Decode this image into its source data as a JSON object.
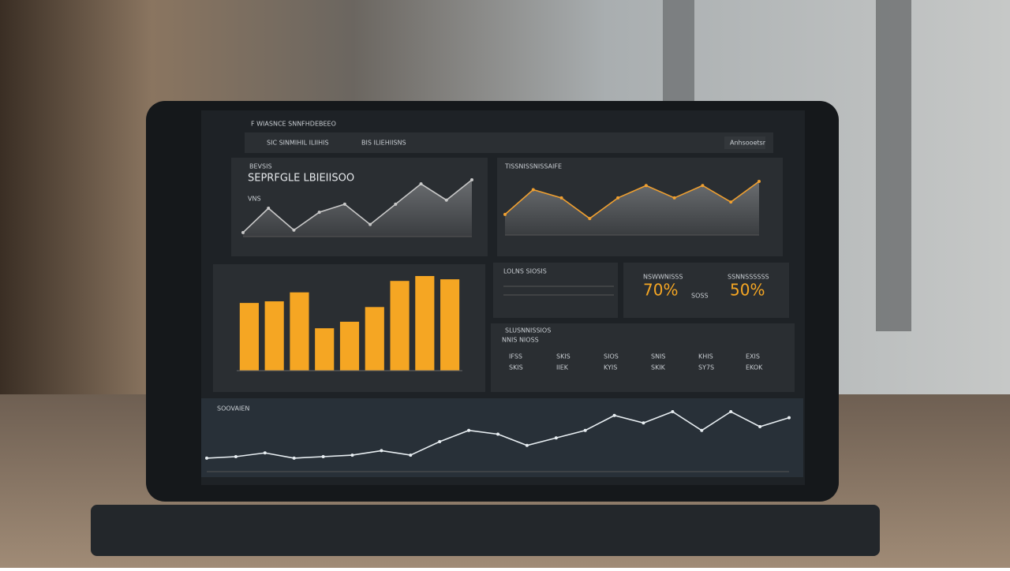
{
  "header": {
    "title": "F WIASNCE SNNFHDEBEEO",
    "nav": [
      "SIC SINMIHIL ILIIHIS",
      "BIS ILIEHIISNS"
    ],
    "button": "Anhsooetsr"
  },
  "charts": [
    {
      "type": "area",
      "title": "BEVSIS",
      "subtitle": "SEPRFGLE LBIEIISOO",
      "label": "VNS",
      "values": [
        5,
        35,
        8,
        30,
        40,
        15,
        40,
        65,
        45,
        70
      ],
      "color": "#c8c8c8"
    },
    {
      "type": "area",
      "title": "TISSNISSNISSAIFE",
      "values": [
        25,
        55,
        45,
        20,
        45,
        60,
        45,
        60,
        40,
        65
      ],
      "color": "#f0a030"
    },
    {
      "type": "bar",
      "values": [
        83,
        85,
        96,
        52,
        60,
        78,
        110,
        116,
        112
      ],
      "color": "#f5a623"
    },
    {
      "type": "line",
      "title": "SOOVAIEN",
      "values": [
        18,
        20,
        25,
        18,
        20,
        22,
        28,
        22,
        40,
        55,
        50,
        35,
        45,
        55,
        75,
        65,
        80,
        55,
        80,
        60,
        72
      ],
      "color": "#e8eef2"
    }
  ],
  "kpis": {
    "title": "LOLNS SIOSIS",
    "items": [
      {
        "label": "NSWWNISSS",
        "value": "70%"
      },
      {
        "label": "SSNNSSSSSS",
        "value": "50%",
        "note": "SOSS"
      }
    ]
  },
  "table": {
    "title": "SLUSNNISSIOS",
    "subtitle": "NNIS NIOSS",
    "rows": [
      [
        "IFSS",
        "SKIS"
      ],
      [
        "SKIS",
        "IIEK"
      ],
      [
        "SIOS",
        "KYIS"
      ],
      [
        "SNIS",
        "SKIK"
      ],
      [
        "KHIS",
        "SY7S"
      ],
      [
        "EXIS",
        "EKOK"
      ]
    ]
  }
}
